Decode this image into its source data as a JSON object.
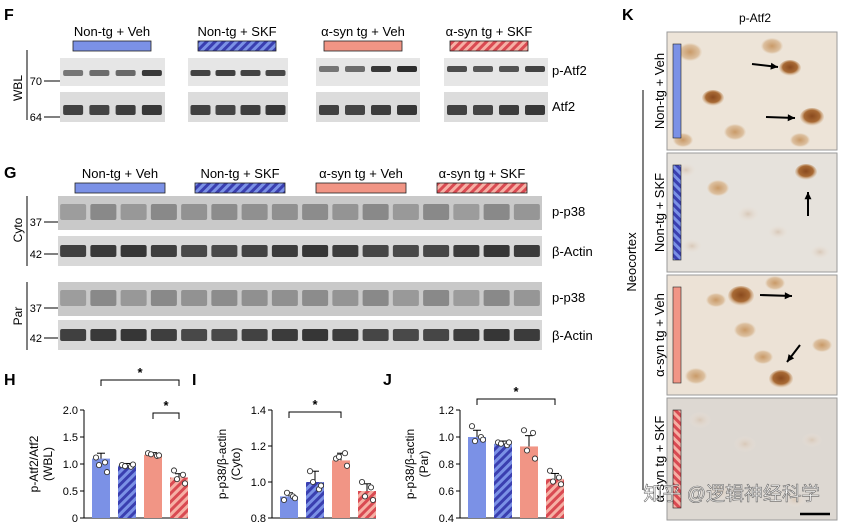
{
  "conditions": [
    "Non-tg + Veh",
    "Non-tg + SKF",
    "α-syn tg + Veh",
    "α-syn tg + SKF"
  ],
  "colors": {
    "veh_nontg": "#7b91e6",
    "skf_nontg": "#4a4fc0",
    "veh_tg": "#f19585",
    "skf_tg": "#e05b60"
  },
  "panelF": {
    "letter": "F",
    "side_label": "WBL",
    "rows": [
      {
        "label": "p-Atf2",
        "mw": "70"
      },
      {
        "label": "Atf2",
        "mw": "64"
      }
    ]
  },
  "panelG": {
    "letter": "G",
    "groups": [
      {
        "side_label": "Cyto",
        "rows": [
          {
            "label": "p-p38",
            "mw": "37"
          },
          {
            "label": "β-Actin",
            "mw": "42"
          }
        ]
      },
      {
        "side_label": "Par",
        "rows": [
          {
            "label": "p-p38",
            "mw": "37"
          },
          {
            "label": "β-Actin",
            "mw": "42"
          }
        ]
      }
    ]
  },
  "panelK": {
    "letter": "K",
    "title": "p-Atf2",
    "region": "Neocortex",
    "row_labels": [
      "Non-tg + Veh",
      "Non-tg + SKF",
      "α-syn tg + Veh",
      "α-syn tg + SKF"
    ]
  },
  "watermark": "知乎 @逻辑神经科学",
  "chart_data": [
    {
      "type": "bar",
      "panel": "H",
      "categories": [
        "Non-tg + Veh",
        "Non-tg + SKF",
        "α-syn tg + Veh",
        "α-syn tg + SKF"
      ],
      "values": [
        1.1,
        0.97,
        1.17,
        0.75
      ],
      "errors": [
        0.1,
        0.04,
        0.04,
        0.07
      ],
      "points": [
        [
          1.12,
          1.03,
          0.98,
          0.85
        ],
        [
          0.98,
          0.95,
          0.96,
          0.99
        ],
        [
          1.2,
          1.15,
          1.18,
          1.16
        ],
        [
          0.88,
          0.8,
          0.72,
          0.64
        ]
      ],
      "ylabel": "p-Atf2/Atf2 (WBL)",
      "ylim": [
        0,
        2.0
      ],
      "yticks": [
        "0",
        "0.5",
        "1.0",
        "1.5",
        "2.0"
      ],
      "sig": [
        {
          "from": 0,
          "to": 3,
          "label": "*"
        },
        {
          "from": 2,
          "to": 3,
          "label": "*"
        }
      ]
    },
    {
      "type": "bar",
      "panel": "I",
      "categories": [
        "Non-tg + Veh",
        "Non-tg + SKF",
        "α-syn tg + Veh",
        "α-syn tg + SKF"
      ],
      "values": [
        0.92,
        1.0,
        1.12,
        0.95
      ],
      "errors": [
        0.02,
        0.06,
        0.04,
        0.04
      ],
      "points": [
        [
          0.9,
          0.92,
          0.94,
          0.91
        ],
        [
          1.06,
          0.96,
          1.0,
          0.98
        ],
        [
          1.13,
          1.16,
          1.14,
          1.09
        ],
        [
          1.0,
          0.97,
          0.92,
          0.9
        ]
      ],
      "ylabel": "p-p38/β-actin (Cyto)",
      "ylim": [
        0.8,
        1.4
      ],
      "yticks": [
        "0.8",
        "1.0",
        "1.2",
        "1.4"
      ],
      "sig": [
        {
          "from": 0,
          "to": 2,
          "label": "*"
        }
      ]
    },
    {
      "type": "bar",
      "panel": "J",
      "categories": [
        "Non-tg + Veh",
        "Non-tg + SKF",
        "α-syn tg + Veh",
        "α-syn tg + SKF"
      ],
      "values": [
        1.0,
        0.95,
        0.93,
        0.69
      ],
      "errors": [
        0.05,
        0.02,
        0.08,
        0.04
      ],
      "points": [
        [
          1.08,
          1.0,
          0.97,
          0.98
        ],
        [
          0.96,
          0.94,
          0.95,
          0.96
        ],
        [
          1.05,
          1.03,
          0.9,
          0.84
        ],
        [
          0.75,
          0.7,
          0.67,
          0.65
        ]
      ],
      "ylabel": "p-p38/β-actin (Par)",
      "ylim": [
        0.4,
        1.2
      ],
      "yticks": [
        "0.4",
        "0.6",
        "0.8",
        "1.0",
        "1.2"
      ],
      "sig": [
        {
          "from": 0,
          "to": 3,
          "label": "*"
        }
      ]
    }
  ]
}
